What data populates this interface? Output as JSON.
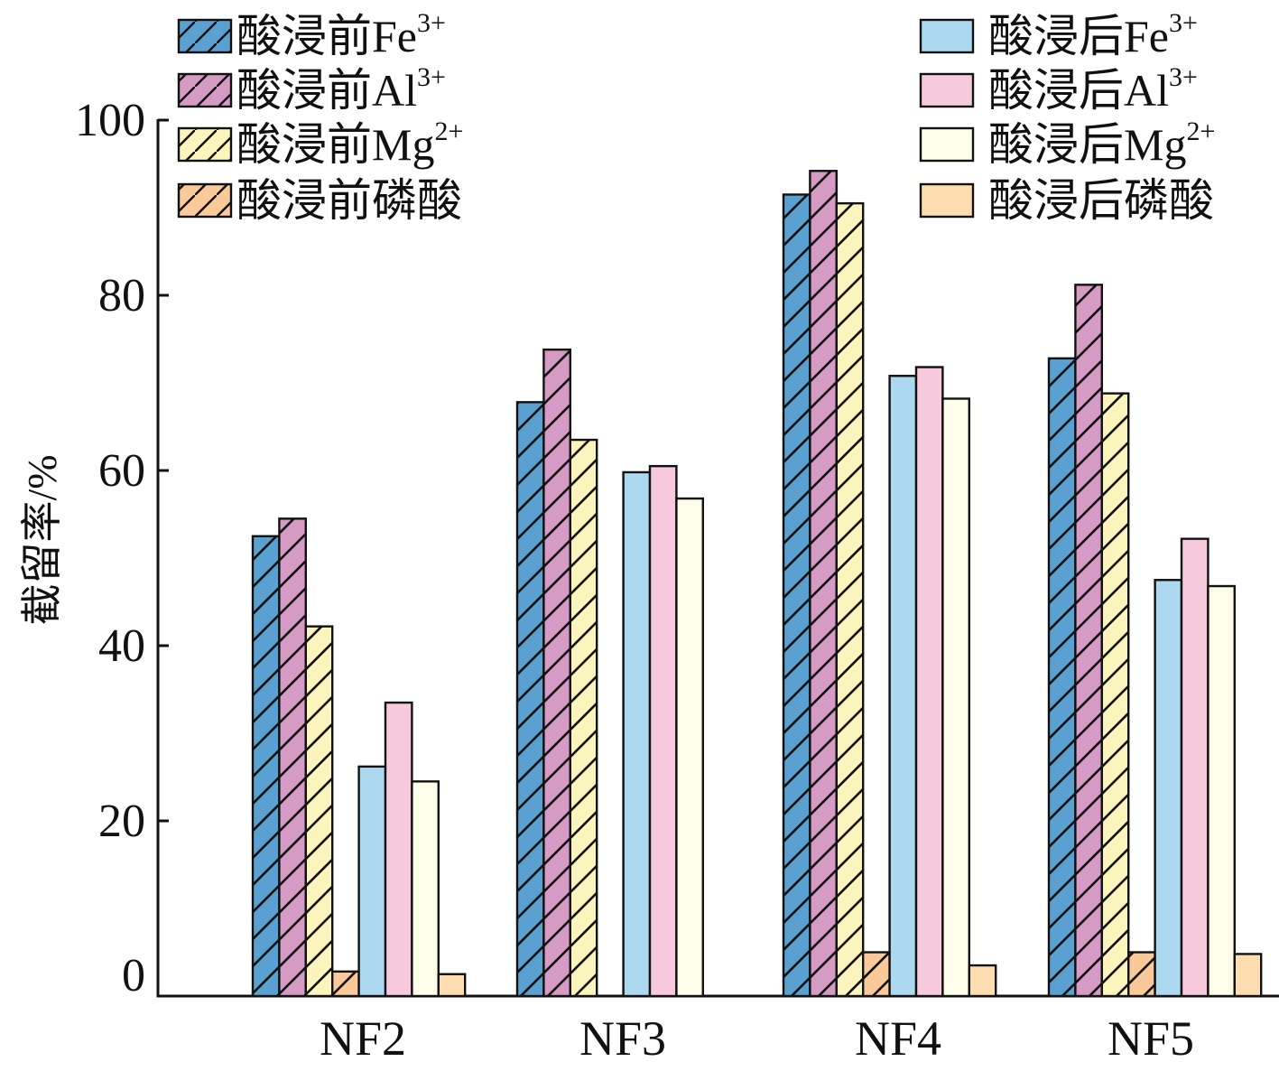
{
  "chart_data": {
    "type": "bar",
    "title": "",
    "xlabel": "",
    "ylabel": "截留率/%",
    "ylim": [
      0,
      100
    ],
    "yticks": [
      "0",
      "20",
      "40",
      "60",
      "80",
      "100"
    ],
    "grid": false,
    "categories": [
      "NF2",
      "NF3",
      "NF4",
      "NF5"
    ],
    "series": [
      {
        "name": "酸浸前Fe3+",
        "label_base": "酸浸前Fe",
        "label_sup": "3+",
        "group": "before",
        "color": "#5aa0d0",
        "hatched": true,
        "values": [
          52.5,
          67.8,
          91.5,
          72.8
        ]
      },
      {
        "name": "酸浸前Al3+",
        "label_base": "酸浸前Al",
        "label_sup": "3+",
        "group": "before",
        "color": "#d59bc5",
        "hatched": true,
        "values": [
          54.5,
          73.8,
          94.2,
          81.2
        ]
      },
      {
        "name": "酸浸前Mg2+",
        "label_base": "酸浸前Mg",
        "label_sup": "2+",
        "group": "before",
        "color": "#fbf5bd",
        "hatched": true,
        "values": [
          42.2,
          63.5,
          90.5,
          68.8
        ]
      },
      {
        "name": "酸浸前磷酸",
        "label_base": "酸浸前磷酸",
        "label_sup": "",
        "group": "before",
        "color": "#f9c99a",
        "hatched": true,
        "values": [
          2.8,
          null,
          5.0,
          5.0
        ]
      },
      {
        "name": "酸浸后Fe3+",
        "label_base": "酸浸后Fe",
        "label_sup": "3+",
        "group": "after",
        "color": "#acd9f0",
        "hatched": false,
        "values": [
          26.2,
          59.8,
          70.8,
          47.5
        ]
      },
      {
        "name": "酸浸后Al3+",
        "label_base": "酸浸后Al",
        "label_sup": "3+",
        "group": "after",
        "color": "#f7c9dd",
        "hatched": false,
        "values": [
          33.5,
          60.5,
          71.8,
          52.2
        ]
      },
      {
        "name": "酸浸后Mg2+",
        "label_base": "酸浸后Mg",
        "label_sup": "2+",
        "group": "after",
        "color": "#fefde9",
        "hatched": false,
        "values": [
          24.5,
          56.8,
          68.2,
          46.8
        ]
      },
      {
        "name": "酸浸后磷酸",
        "label_base": "酸浸后磷酸",
        "label_sup": "",
        "group": "after",
        "color": "#fddcaf",
        "hatched": false,
        "values": [
          2.5,
          null,
          3.5,
          4.8
        ]
      }
    ],
    "legend": {
      "before_placement": "top-left",
      "after_placement": "top-right"
    }
  }
}
